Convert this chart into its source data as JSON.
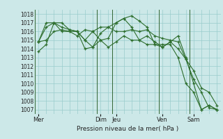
{
  "title": "Pression niveau de la mer( hPa )",
  "bg_color": "#cce8e8",
  "grid_color": "#99cccc",
  "line_color": "#2d6e2d",
  "separator_color": "#336633",
  "ylim": [
    1006.5,
    1018.5
  ],
  "yticks": [
    1007,
    1008,
    1009,
    1010,
    1011,
    1012,
    1013,
    1014,
    1015,
    1016,
    1017,
    1018
  ],
  "day_labels": [
    "Mer",
    "Dim",
    "Jeu",
    "Ven",
    "Sam"
  ],
  "day_x": [
    0,
    8,
    10,
    16,
    20
  ],
  "n_points": 24,
  "series": [
    [
      1013.7,
      1014.5,
      1017.0,
      1017.0,
      1016.2,
      1016.0,
      1015.0,
      1014.2,
      1015.0,
      1015.2,
      1017.0,
      1017.5,
      1017.8,
      1017.2,
      1016.5,
      1014.5,
      1014.5,
      1014.5,
      1013.0,
      1010.0,
      1009.0,
      1007.0,
      1007.5,
      1007.0
    ],
    [
      1014.8,
      1017.0,
      1017.0,
      1016.0,
      1016.0,
      1015.5,
      1016.2,
      1016.0,
      1015.0,
      1014.2,
      1014.8,
      1015.5,
      1015.0,
      1015.0,
      1015.5,
      1014.8,
      1014.2,
      1014.8,
      1014.0,
      1012.8,
      1011.5,
      1009.5,
      1009.0,
      1007.5
    ],
    [
      1014.8,
      1015.0,
      1016.0,
      1016.2,
      1016.0,
      1016.0,
      1015.0,
      1016.0,
      1016.5,
      1016.5,
      1016.0,
      1016.0,
      1016.2,
      1016.0,
      1016.2,
      1015.5,
      1015.2,
      1015.0,
      1014.8,
      1012.8,
      1010.5,
      1009.0,
      1007.2,
      1007.0
    ],
    [
      1014.8,
      1016.5,
      1017.0,
      1016.5,
      1016.2,
      1016.0,
      1014.0,
      1014.2,
      1015.8,
      1016.5,
      1017.0,
      1017.5,
      1016.5,
      1015.0,
      1014.5,
      1014.5,
      1014.2,
      1014.8,
      1015.5,
      1013.0,
      1010.0,
      1007.0,
      1007.5,
      1007.0
    ]
  ]
}
